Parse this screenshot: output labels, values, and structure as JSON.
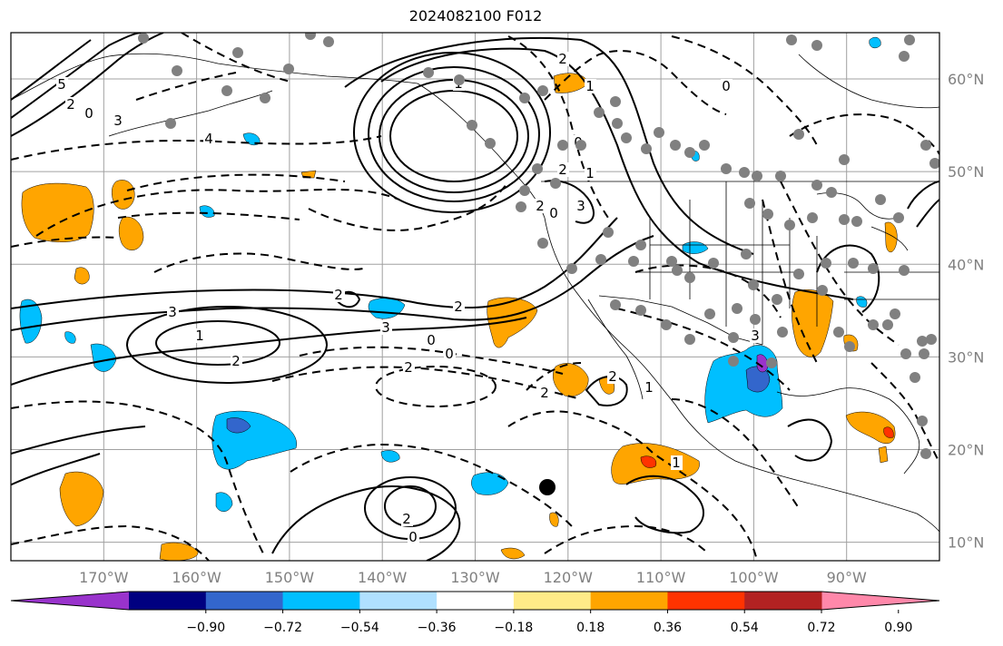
{
  "title": "2024082100 F012",
  "map": {
    "lon_range": [
      -180,
      -80
    ],
    "lat_range": [
      8,
      65
    ],
    "lat_ticks": [
      "10°N",
      "20°N",
      "30°N",
      "40°N",
      "50°N",
      "60°N"
    ],
    "lon_ticks": [
      "170°W",
      "160°W",
      "150°W",
      "140°W",
      "130°W",
      "120°W",
      "110°W",
      "100°W",
      "90°W"
    ],
    "contour_labels": [
      "5",
      "2",
      "0",
      "3",
      "4",
      "1",
      "0",
      "2",
      "1",
      "0",
      "2",
      "3",
      "2",
      "1",
      "0",
      "2",
      "3",
      "3",
      "2",
      "0",
      "1",
      "2",
      "2",
      "0",
      "2",
      "1",
      "1",
      "2",
      "0",
      "3",
      "2"
    ],
    "marker_dot_color": "#000000",
    "station_dot_color": "#808080",
    "grid": true
  },
  "colorbar": {
    "colors": [
      "#9933cc",
      "#000080",
      "#3366cc",
      "#00bfff",
      "#b0e0ff",
      "#ffffff",
      "#ffeb88",
      "#ffa500",
      "#ff3300",
      "#b22222",
      "#ff88aa"
    ],
    "extend": "both",
    "ticks": [
      "−0.90",
      "−0.72",
      "−0.54",
      "−0.36",
      "−0.18",
      "0.18",
      "0.36",
      "0.54",
      "0.72",
      "0.90"
    ]
  },
  "colors": {
    "orange": "#ffa500",
    "cyan": "#00bfff",
    "blue": "#3366cc",
    "red": "#ff3300",
    "purple": "#9933cc"
  }
}
